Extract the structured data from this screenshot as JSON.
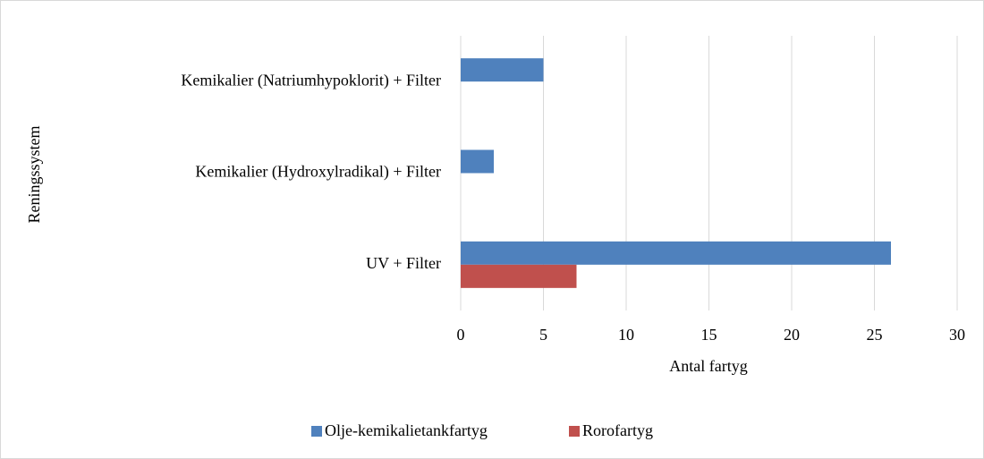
{
  "chart_data": {
    "type": "barh",
    "xlabel": "Antal fartyg",
    "ylabel": "Reningssystem",
    "categories": [
      "UV + Filter",
      "Kemikalier (Hydroxylradikal) + Filter",
      "Kemikalier (Natriumhypoklorit) + Filter"
    ],
    "series": [
      {
        "name": "Olje-kemikalietankfartyg",
        "color": "#4f81bd",
        "values": [
          26,
          2,
          5
        ]
      },
      {
        "name": "Rorofartyg",
        "color": "#c0504d",
        "values": [
          7,
          0,
          0
        ]
      }
    ],
    "xlim": [
      0,
      30
    ],
    "xticks": [
      0,
      5,
      10,
      15,
      20,
      25,
      30
    ],
    "grid": true,
    "legend": "bottom"
  }
}
